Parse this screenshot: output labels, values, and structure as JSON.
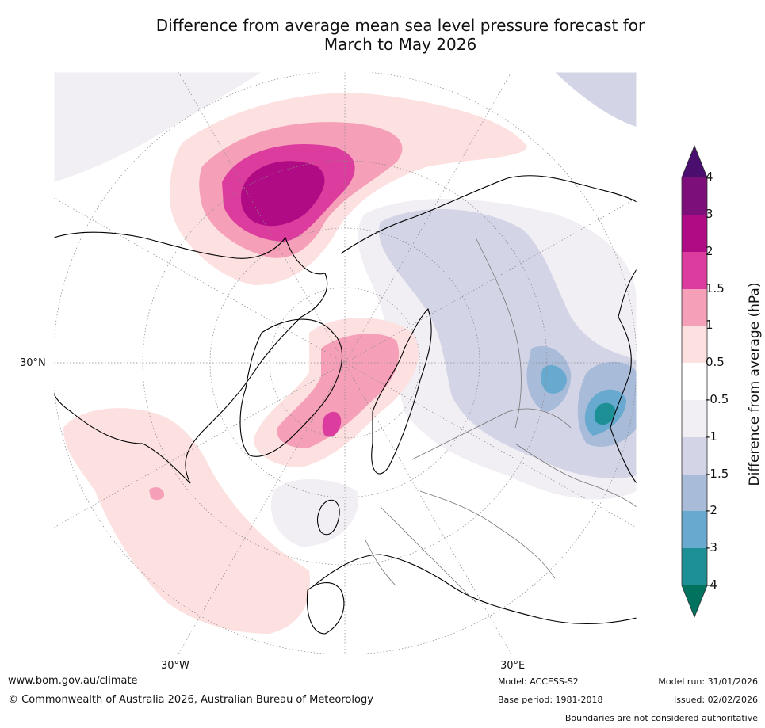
{
  "title": {
    "line1": "Difference from average mean sea level pressure forecast for",
    "line2": "March to May 2026"
  },
  "map": {
    "region": "Northern hemisphere polar view centred on the North Atlantic and Europe",
    "lat_label": "30°N",
    "lon_labels": [
      "30°W",
      "30°E"
    ]
  },
  "colorbar": {
    "title": "Difference from average (hPa)",
    "tick_labels": [
      "4",
      "3",
      "2",
      "1.5",
      "1",
      "0.5",
      "-0.5",
      "-1",
      "-1.5",
      "-2",
      "-3",
      "-4"
    ],
    "colors": {
      "above_4": "#4a0f6e",
      "3_to_4": "#7d0f7a",
      "2_to_3": "#b00b85",
      "1.5_to_2": "#dc3c9d",
      "1_to_1.5": "#f5a0b8",
      "0.5_to_1": "#fde0e0",
      "neutral": "#ffffff",
      "-1_to_-0.5": "#f1eef4",
      "-1.5_to_-1": "#d3d4e6",
      "-2_to_-1.5": "#a8bbd9",
      "-3_to_-2": "#67a9cf",
      "-4_to_-3": "#1d9096",
      "below_-4": "#01725e"
    }
  },
  "footer": {
    "website": "www.bom.gov.au/climate",
    "copyright": "© Commonwealth of Australia 2026, Australian Bureau of Meteorology",
    "model": "Model: ACCESS-S2",
    "base_period": "Base period: 1981-2018",
    "model_run": "Model run: 31/01/2026",
    "issued": "Issued: 02/02/2026",
    "disclaimer": "Boundaries are not considered authoritative"
  }
}
